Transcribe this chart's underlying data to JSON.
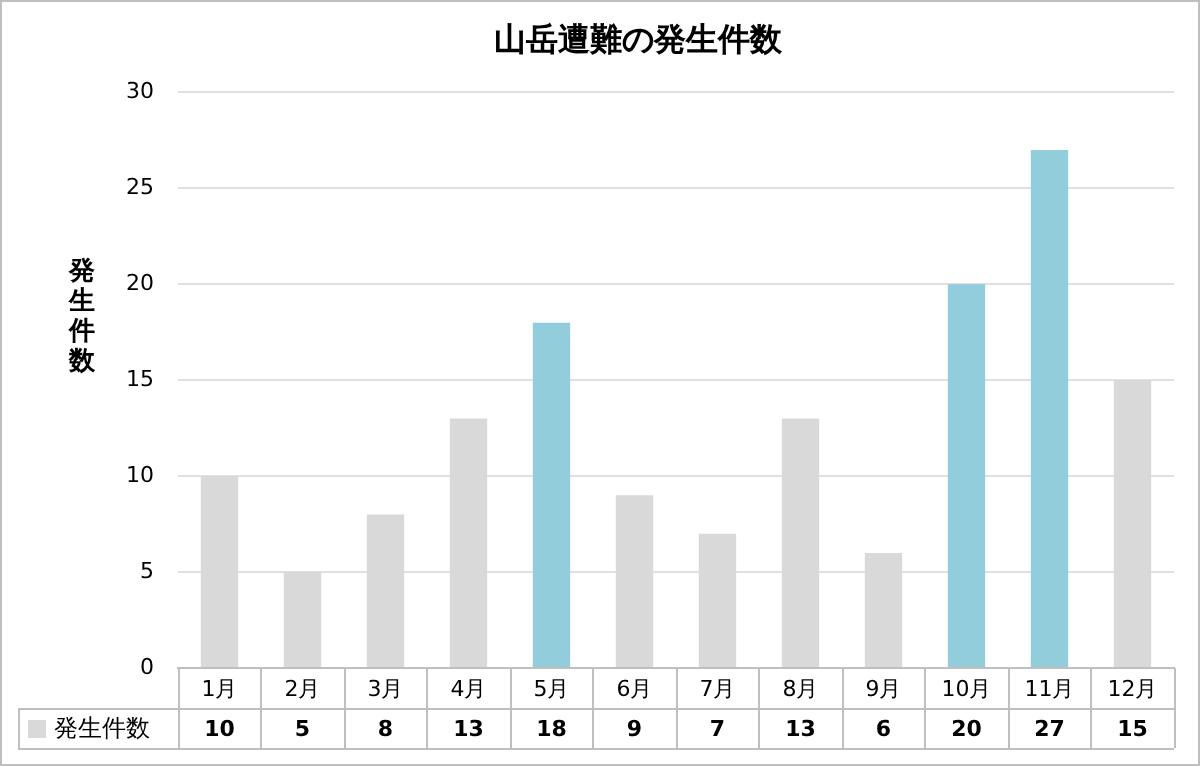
{
  "chart_data": {
    "type": "bar",
    "title": "山岳遭難の発生件数",
    "ylabel": "発生件数",
    "categories": [
      "1月",
      "2月",
      "3月",
      "4月",
      "5月",
      "6月",
      "7月",
      "8月",
      "9月",
      "10月",
      "11月",
      "12月"
    ],
    "series": [
      {
        "name": "発生件数",
        "color": "#d9d9d9",
        "colors": [
          "#d9d9d9",
          "#d9d9d9",
          "#d9d9d9",
          "#d9d9d9",
          "#92cddc",
          "#d9d9d9",
          "#d9d9d9",
          "#d9d9d9",
          "#d9d9d9",
          "#92cddc",
          "#92cddc",
          "#d9d9d9"
        ],
        "values": [
          10,
          5,
          8,
          13,
          18,
          9,
          7,
          13,
          6,
          20,
          27,
          15
        ]
      }
    ],
    "ylim": [
      0,
      30
    ],
    "yticks": [
      0,
      5,
      10,
      15,
      20,
      25,
      30
    ],
    "grid": "y",
    "legend": "bottom",
    "data_labels": true
  }
}
